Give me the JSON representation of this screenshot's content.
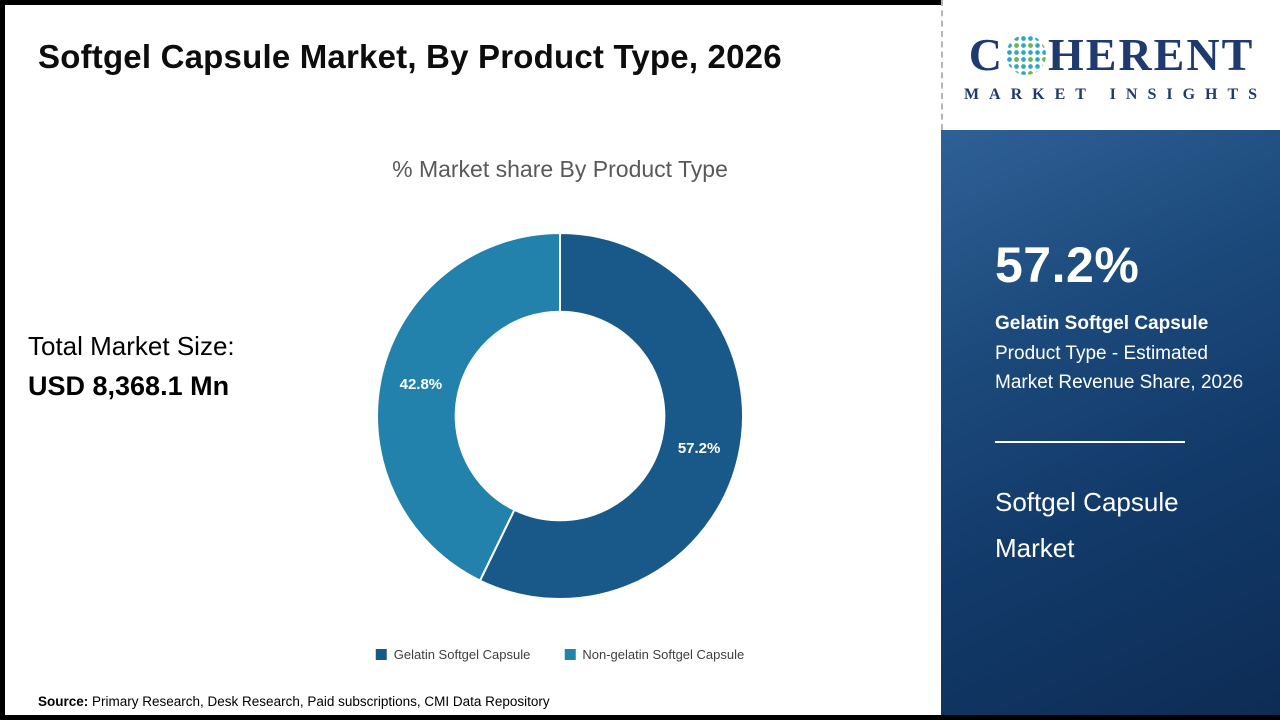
{
  "page": {
    "title": "Softgel Capsule Market, By Product Type, 2026"
  },
  "logo": {
    "word_start": "C",
    "word_end": "HERENT",
    "subtitle": "MARKET INSIGHTS",
    "brand_navy": "#1e3a6e"
  },
  "main": {
    "total_label": "Total Market Size:",
    "total_value": "USD 8,368.1 Mn"
  },
  "chart_data": {
    "type": "pie",
    "subtype": "donut",
    "title": "% Market share By Product Type",
    "categories": [
      "Gelatin Softgel Capsule",
      "Non-gelatin Softgel Capsule"
    ],
    "values": [
      57.2,
      42.8
    ],
    "labels": [
      "57.2%",
      "42.8%"
    ],
    "colors": [
      "#19598a",
      "#2282ac"
    ],
    "start_angle_deg": 0,
    "direction": "clockwise",
    "inner_radius_ratio": 0.57,
    "legend_position": "bottom"
  },
  "sidebar": {
    "stat_value": "57.2%",
    "stat_label_bold": "Gelatin Softgel Capsule",
    "stat_description": "Product Type - Estimated Market Revenue Share, 2026",
    "panel_title": "Softgel Capsule Market",
    "background": "#123a69"
  },
  "footer": {
    "source_label": "Source:",
    "source_text": " Primary Research, Desk Research, Paid subscriptions, CMI Data Repository"
  }
}
